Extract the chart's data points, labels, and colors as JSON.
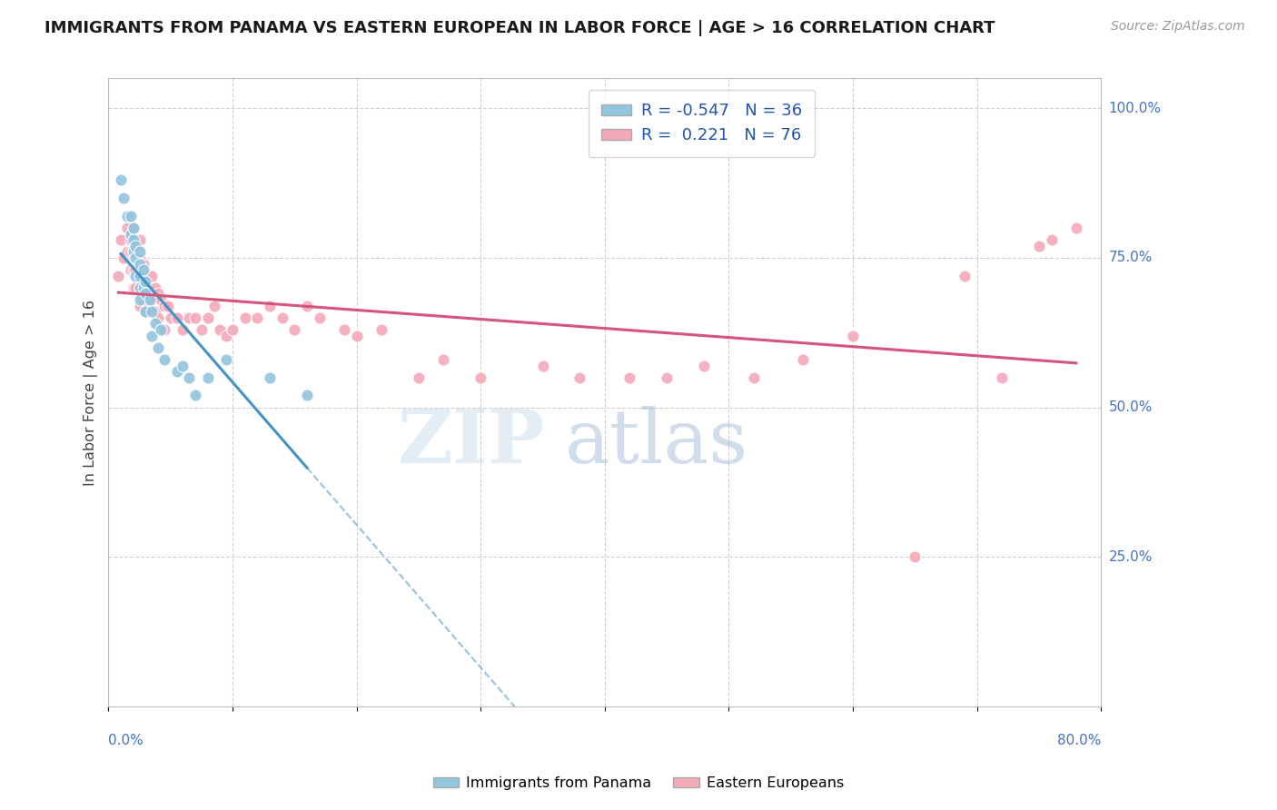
{
  "title": "IMMIGRANTS FROM PANAMA VS EASTERN EUROPEAN IN LABOR FORCE | AGE > 16 CORRELATION CHART",
  "source": "Source: ZipAtlas.com",
  "ylabel": "In Labor Force | Age > 16",
  "xmin": 0.0,
  "xmax": 0.8,
  "ymin": 0.0,
  "ymax": 1.05,
  "panama_R": -0.547,
  "panama_N": 36,
  "eastern_R": 0.221,
  "eastern_N": 76,
  "panama_color": "#92c5de",
  "eastern_color": "#f4a9b8",
  "panama_line_color": "#4393c3",
  "eastern_line_color": "#d6537a",
  "panama_points_x": [
    0.01,
    0.012,
    0.015,
    0.018,
    0.018,
    0.02,
    0.02,
    0.02,
    0.022,
    0.022,
    0.022,
    0.025,
    0.025,
    0.025,
    0.025,
    0.025,
    0.028,
    0.028,
    0.03,
    0.03,
    0.03,
    0.033,
    0.035,
    0.035,
    0.038,
    0.04,
    0.042,
    0.045,
    0.055,
    0.06,
    0.065,
    0.07,
    0.08,
    0.095,
    0.13,
    0.16
  ],
  "panama_points_y": [
    0.88,
    0.85,
    0.82,
    0.82,
    0.79,
    0.8,
    0.78,
    0.76,
    0.77,
    0.75,
    0.72,
    0.76,
    0.74,
    0.72,
    0.7,
    0.68,
    0.73,
    0.7,
    0.71,
    0.69,
    0.66,
    0.68,
    0.66,
    0.62,
    0.64,
    0.6,
    0.63,
    0.58,
    0.56,
    0.57,
    0.55,
    0.52,
    0.55,
    0.58,
    0.55,
    0.52
  ],
  "eastern_points_x": [
    0.008,
    0.01,
    0.012,
    0.015,
    0.015,
    0.018,
    0.018,
    0.018,
    0.02,
    0.02,
    0.02,
    0.02,
    0.022,
    0.022,
    0.022,
    0.025,
    0.025,
    0.025,
    0.025,
    0.025,
    0.028,
    0.028,
    0.028,
    0.03,
    0.03,
    0.03,
    0.032,
    0.032,
    0.035,
    0.035,
    0.038,
    0.038,
    0.04,
    0.04,
    0.042,
    0.045,
    0.045,
    0.048,
    0.05,
    0.055,
    0.06,
    0.065,
    0.07,
    0.075,
    0.08,
    0.085,
    0.09,
    0.095,
    0.1,
    0.11,
    0.12,
    0.13,
    0.14,
    0.15,
    0.16,
    0.17,
    0.19,
    0.2,
    0.22,
    0.25,
    0.27,
    0.3,
    0.35,
    0.38,
    0.42,
    0.45,
    0.48,
    0.52,
    0.56,
    0.6,
    0.65,
    0.69,
    0.72,
    0.75,
    0.76,
    0.78
  ],
  "eastern_points_y": [
    0.72,
    0.78,
    0.75,
    0.8,
    0.76,
    0.78,
    0.76,
    0.73,
    0.8,
    0.76,
    0.73,
    0.7,
    0.76,
    0.73,
    0.7,
    0.78,
    0.75,
    0.72,
    0.7,
    0.67,
    0.74,
    0.71,
    0.68,
    0.72,
    0.69,
    0.66,
    0.7,
    0.67,
    0.72,
    0.68,
    0.7,
    0.66,
    0.69,
    0.65,
    0.68,
    0.67,
    0.63,
    0.67,
    0.65,
    0.65,
    0.63,
    0.65,
    0.65,
    0.63,
    0.65,
    0.67,
    0.63,
    0.62,
    0.63,
    0.65,
    0.65,
    0.67,
    0.65,
    0.63,
    0.67,
    0.65,
    0.63,
    0.62,
    0.63,
    0.55,
    0.58,
    0.55,
    0.57,
    0.55,
    0.55,
    0.55,
    0.57,
    0.55,
    0.58,
    0.62,
    0.25,
    0.72,
    0.55,
    0.77,
    0.78,
    0.8
  ],
  "right_axis_labels": [
    [
      1.0,
      "100.0%"
    ],
    [
      0.75,
      "75.0%"
    ],
    [
      0.5,
      "50.0%"
    ],
    [
      0.25,
      "25.0%"
    ]
  ],
  "bottom_axis_labels": [
    "0.0%",
    "80.0%"
  ],
  "legend_labels": [
    "Immigrants from Panama",
    "Eastern Europeans"
  ]
}
